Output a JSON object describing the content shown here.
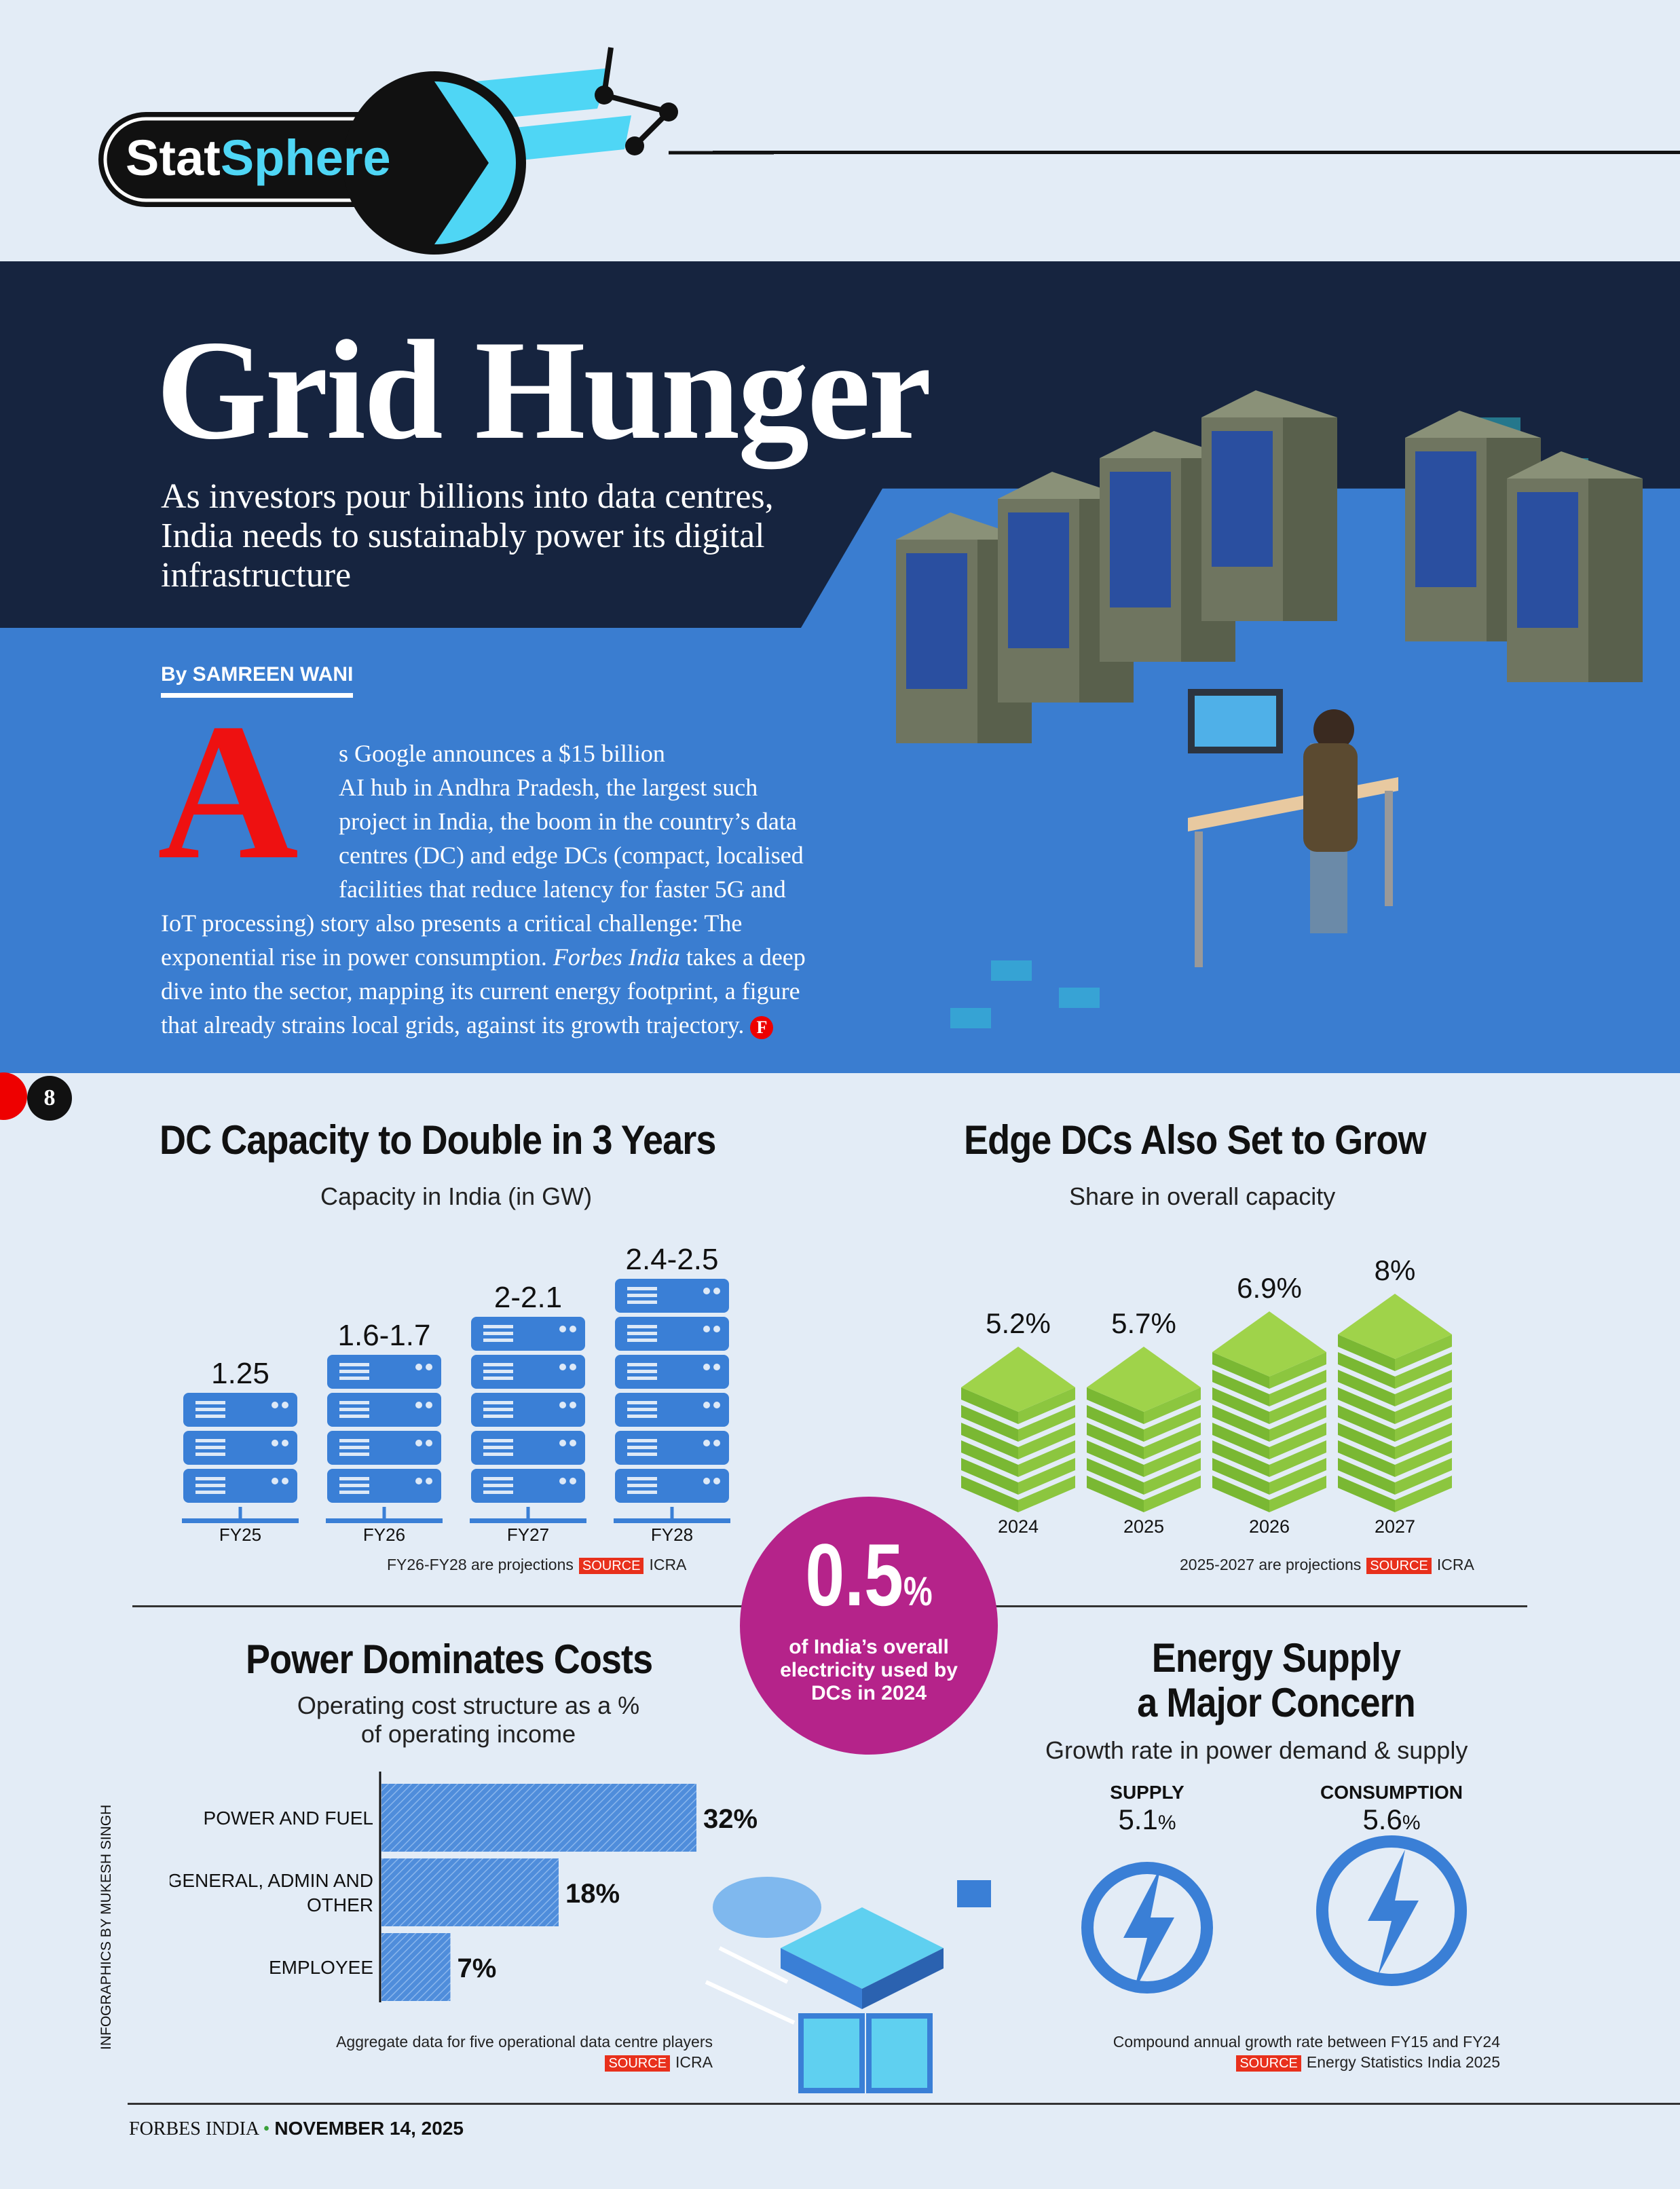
{
  "brand": {
    "logo_part1": "Stat",
    "logo_part2": "Sphere"
  },
  "hero": {
    "title": "Grid Hunger",
    "subtitle": [
      "As investors pour billions into data centres,",
      "India needs to sustainably power its digital",
      "infrastructure"
    ],
    "byline": "By SAMREEN WANI",
    "drop_cap": "A",
    "body_lines": [
      "s Google announces a $15 billion",
      "AI hub in Andhra Pradesh, the largest such",
      "project in India, the boom in the country’s data",
      "centres (DC) and edge DCs (compact, localised",
      "facilities that reduce latency for faster 5G and",
      "IoT processing) story also presents a critical challenge: The"
    ],
    "body_line7a": "exponential rise in power consumption. ",
    "body_line7_italic": "Forbes India",
    "body_line7b": " takes a deep",
    "body_line8": "dive into the sector, mapping its current energy footprint, a figure",
    "body_line9": "that already strains local grids, against its growth trajectory.",
    "end_mark": "F"
  },
  "page_number": "8",
  "highlight": {
    "value": "0.5",
    "unit": "%",
    "text": [
      "of India’s overall",
      "electricity used by",
      "DCs in 2024"
    ]
  },
  "credit": "INFOGRAPHICS BY MUKESH SINGH",
  "footer": {
    "publication": "FORBES INDIA",
    "date": "NOVEMBER 14, 2025"
  },
  "colors": {
    "navy": "#16243f",
    "blue": "#3a7dd0",
    "server": "#3a7fd6",
    "green": "#8cc63f",
    "magenta": "#b5238a",
    "red": "#e8301c"
  },
  "chart_data": [
    {
      "type": "bar",
      "title": "DC Capacity to Double in 3 Years",
      "subtitle": "Capacity in India (in GW)",
      "categories": [
        "FY25",
        "FY26",
        "FY27",
        "FY28"
      ],
      "labels": [
        "1.25",
        "1.6-1.7",
        "2-2.1",
        "2.4-2.5"
      ],
      "values": [
        1.25,
        1.65,
        2.05,
        2.45
      ],
      "note": "FY26-FY28 are projections",
      "source_label": "SOURCE",
      "source": "ICRA"
    },
    {
      "type": "bar",
      "title": "Edge DCs Also Set to Grow",
      "subtitle": "Share in overall capacity",
      "categories": [
        "2024",
        "2025",
        "2026",
        "2027"
      ],
      "values": [
        5.2,
        5.7,
        6.9,
        8
      ],
      "labels": [
        "5.2",
        "5.7",
        "6.9",
        "8"
      ],
      "unit": "%",
      "note": "2025-2027 are projections",
      "source_label": "SOURCE",
      "source": "ICRA"
    },
    {
      "type": "bar",
      "orientation": "horizontal",
      "title": "Power Dominates Costs",
      "subtitle": [
        "Operating cost structure as a %",
        "of operating income"
      ],
      "categories": [
        "POWER AND FUEL",
        "GENERAL, ADMIN AND OTHER",
        "EMPLOYEE"
      ],
      "values": [
        32,
        18,
        7
      ],
      "unit": "%",
      "note": "Aggregate data for five operational data centre players",
      "source_label": "SOURCE",
      "source": "ICRA"
    },
    {
      "type": "table",
      "title": [
        "Energy Supply",
        "a Major Concern"
      ],
      "subtitle": "Growth rate in power demand & supply",
      "categories": [
        "SUPPLY",
        "CONSUMPTION"
      ],
      "values": [
        5.1,
        5.6
      ],
      "unit": "%",
      "note": "Compound annual growth rate between FY15 and FY24",
      "source_label": "SOURCE",
      "source": "Energy Statistics India 2025"
    }
  ]
}
